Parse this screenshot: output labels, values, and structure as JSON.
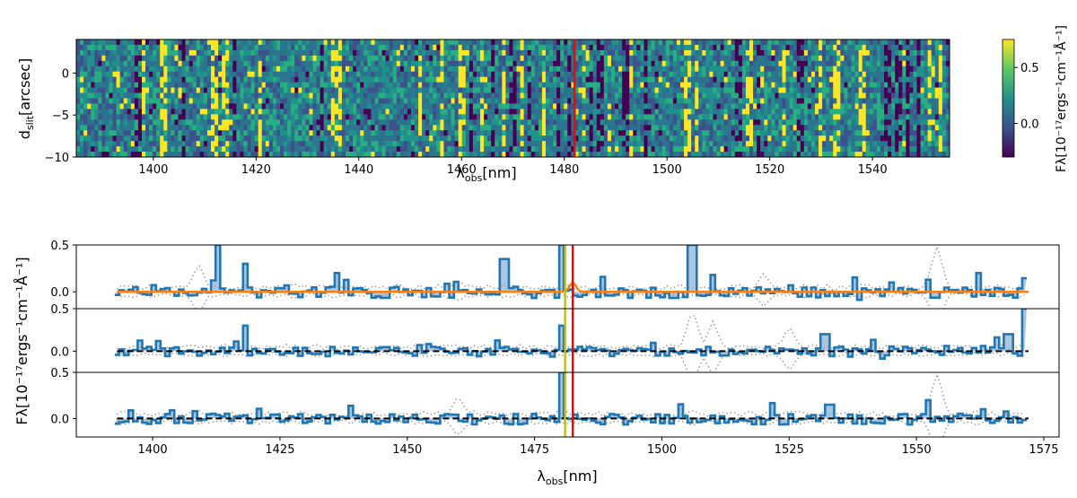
{
  "figure": {
    "top_panel": {
      "ylabel_main": "d",
      "ylabel_sub": "slit",
      "ylabel_unit": "[arcsec]",
      "xlabel_main": "λ",
      "xlabel_sub": "obs",
      "xlabel_unit": "[nm]",
      "colorbar_label": "Fλ[10⁻¹⁷ergs⁻¹cm⁻¹Å⁻¹]"
    },
    "bottom_panel": {
      "ylabel": "Fλ[10⁻¹⁷ergs⁻¹cm⁻¹Å⁻¹]",
      "xlabel_main": "λ",
      "xlabel_sub": "obs",
      "xlabel_unit": "[nm]"
    }
  },
  "colors": {
    "spectrum_line": "#1f77b4",
    "spectrum_fill": "#8fb3d6",
    "model_orange": "#ff7f0e",
    "marker_red": "#ff0000",
    "marker_olive": "#bcbd22",
    "noise_gray": "#a0a0a0",
    "cmap": [
      "#440154",
      "#3b528b",
      "#21918c",
      "#5ec962",
      "#fde725"
    ]
  },
  "chart_data": [
    {
      "type": "heatmap",
      "title": "",
      "xlabel": "λobs[nm]",
      "ylabel": "dslit[arcsec]",
      "xlim": [
        1385,
        1555
      ],
      "ylim": [
        -10,
        4
      ],
      "xticks": [
        1400,
        1420,
        1440,
        1460,
        1480,
        1500,
        1520,
        1540
      ],
      "yticks": [
        0,
        -5,
        -10
      ],
      "colorbar": {
        "label": "Fλ[10⁻¹⁷ergs⁻¹cm⁻¹Å⁻¹]",
        "range": [
          -0.3,
          0.75
        ],
        "ticks": [
          0.5,
          0.0
        ]
      },
      "marker_line": {
        "x": 1482,
        "color": "red"
      },
      "bright_columns": [
        1398,
        1402,
        1412,
        1414,
        1421,
        1435,
        1436,
        1452,
        1456,
        1460,
        1464,
        1468,
        1472,
        1476,
        1484,
        1489,
        1493,
        1504,
        1506,
        1516,
        1523,
        1530,
        1533,
        1538,
        1551,
        1553
      ],
      "dark_columns": [
        1397,
        1406,
        1416,
        1433,
        1462,
        1466,
        1470,
        1473,
        1479,
        1481,
        1485,
        1487,
        1492,
        1496,
        1514,
        1518,
        1526,
        1543,
        1545,
        1547,
        1549
      ]
    },
    {
      "type": "line",
      "title": "",
      "xlabel": "λobs[nm]",
      "ylabel": "Fλ[10⁻¹⁷ergs⁻¹cm⁻¹Å⁻¹]",
      "xlim": [
        1385,
        1578
      ],
      "xticks": [
        1400,
        1425,
        1450,
        1475,
        1500,
        1525,
        1550,
        1575
      ],
      "data_xrange": [
        1393,
        1572
      ],
      "subpanels": [
        {
          "ylim": [
            -0.18,
            0.5
          ],
          "yticks": [
            0.5,
            0.0
          ],
          "model": "orange",
          "model_peak_x": 1482.5,
          "model_peak_y": 0.1,
          "spikes": [
            [
              1413,
              0.5
            ],
            [
              1418,
              0.3
            ],
            [
              1436,
              0.2
            ],
            [
              1469,
              0.35
            ],
            [
              1480,
              0.5
            ],
            [
              1506,
              0.5
            ],
            [
              1510,
              0.18
            ],
            [
              1545,
              0.1
            ],
            [
              1562,
              0.2
            ]
          ],
          "noise_spikes": [
            [
              1409,
              0.3
            ],
            [
              1460,
              0.13
            ],
            [
              1520,
              0.2
            ],
            [
              1554,
              0.5
            ]
          ]
        },
        {
          "ylim": [
            -0.25,
            0.5
          ],
          "yticks": [
            0.5,
            0.0
          ],
          "model": "dashed-black",
          "spikes": [
            [
              1418,
              0.3
            ],
            [
              1480,
              0.3
            ],
            [
              1532,
              0.2
            ],
            [
              1568,
              0.2
            ],
            [
              1571,
              0.5
            ]
          ],
          "noise_spikes": [
            [
              1506,
              0.5
            ],
            [
              1510,
              0.35
            ],
            [
              1525,
              0.3
            ]
          ]
        },
        {
          "ylim": [
            -0.2,
            0.5
          ],
          "yticks": [
            0.5,
            0.0
          ],
          "model": "dashed-black",
          "spikes": [
            [
              1480,
              0.5
            ],
            [
              1533,
              0.15
            ],
            [
              1552,
              0.2
            ],
            [
              1563,
              0.1
            ]
          ],
          "noise_spikes": [
            [
              1460,
              0.25
            ],
            [
              1506,
              0.1
            ],
            [
              1554,
              0.5
            ]
          ]
        }
      ],
      "marker_lines": [
        {
          "x": 1481,
          "color": "olive"
        },
        {
          "x": 1482.5,
          "color": "red"
        }
      ]
    }
  ]
}
